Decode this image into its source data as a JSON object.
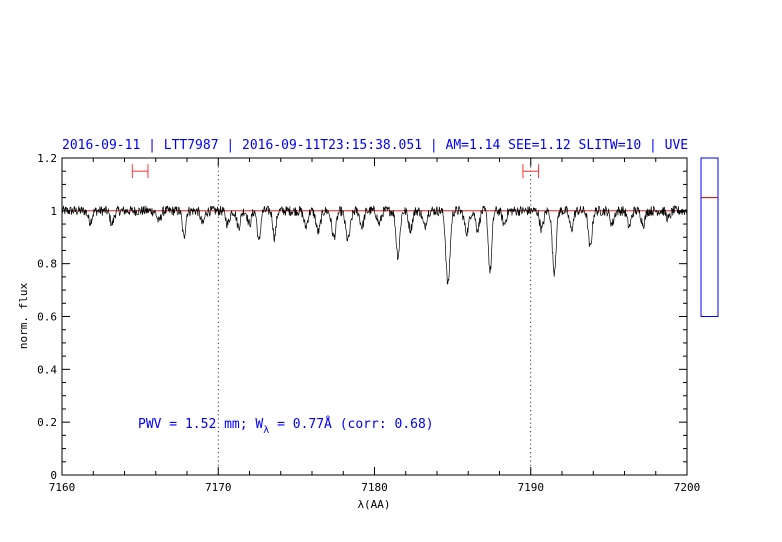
{
  "chart_data": {
    "type": "line",
    "title": "2016-09-11 | LTT7987 | 2016-09-11T23:15:38.051 | AM=1.14  SEE=1.12  SLITW=10 | UVE",
    "xlabel": "λ(AA)",
    "ylabel": "norm. flux",
    "xlim": [
      7160,
      7200
    ],
    "ylim": [
      0,
      1.2
    ],
    "xticks": [
      7160,
      7170,
      7180,
      7190,
      7200
    ],
    "yticks": [
      0,
      0.2,
      0.4,
      0.6,
      0.8,
      1,
      1.2
    ],
    "ytick_labels": [
      "0",
      "0.2",
      "0.4",
      "0.6",
      "0.8",
      "1",
      "1.2"
    ],
    "grid": false,
    "vertical_dotted_lines_x": [
      7170,
      7190
    ],
    "reference_line_y": 1.0,
    "annotation": {
      "prefix": "PWV = 1.52 mm; W",
      "subscript": "λ",
      "suffix": " = 0.77Å (corr: 0.68)"
    },
    "error_bar_markers": [
      {
        "x_center": 7165.0,
        "half_width": 0.5,
        "y": 1.15
      },
      {
        "x_center": 7190.0,
        "half_width": 0.5,
        "y": 1.15
      }
    ],
    "side_indicator": {
      "range": [
        0.6,
        1.2
      ],
      "level": 1.05
    },
    "absorption_lines": [
      {
        "x": 7161.8,
        "depth": 0.04,
        "width": 0.12
      },
      {
        "x": 7163.2,
        "depth": 0.05,
        "width": 0.12
      },
      {
        "x": 7166.2,
        "depth": 0.04,
        "width": 0.12
      },
      {
        "x": 7167.8,
        "depth": 0.1,
        "width": 0.1
      },
      {
        "x": 7169.0,
        "depth": 0.05,
        "width": 0.12
      },
      {
        "x": 7170.6,
        "depth": 0.05,
        "width": 0.12
      },
      {
        "x": 7171.3,
        "depth": 0.06,
        "width": 0.12
      },
      {
        "x": 7172.0,
        "depth": 0.05,
        "width": 0.12
      },
      {
        "x": 7172.6,
        "depth": 0.12,
        "width": 0.1
      },
      {
        "x": 7173.6,
        "depth": 0.1,
        "width": 0.1
      },
      {
        "x": 7175.6,
        "depth": 0.06,
        "width": 0.12
      },
      {
        "x": 7176.4,
        "depth": 0.08,
        "width": 0.14
      },
      {
        "x": 7177.4,
        "depth": 0.1,
        "width": 0.14
      },
      {
        "x": 7178.3,
        "depth": 0.11,
        "width": 0.15
      },
      {
        "x": 7179.2,
        "depth": 0.06,
        "width": 0.12
      },
      {
        "x": 7180.3,
        "depth": 0.05,
        "width": 0.12
      },
      {
        "x": 7181.5,
        "depth": 0.17,
        "width": 0.12
      },
      {
        "x": 7182.3,
        "depth": 0.07,
        "width": 0.12
      },
      {
        "x": 7183.2,
        "depth": 0.06,
        "width": 0.12
      },
      {
        "x": 7184.7,
        "depth": 0.28,
        "width": 0.13
      },
      {
        "x": 7185.9,
        "depth": 0.08,
        "width": 0.14
      },
      {
        "x": 7186.6,
        "depth": 0.07,
        "width": 0.12
      },
      {
        "x": 7187.4,
        "depth": 0.23,
        "width": 0.11
      },
      {
        "x": 7188.3,
        "depth": 0.05,
        "width": 0.12
      },
      {
        "x": 7190.7,
        "depth": 0.07,
        "width": 0.12
      },
      {
        "x": 7191.5,
        "depth": 0.23,
        "width": 0.12
      },
      {
        "x": 7192.6,
        "depth": 0.07,
        "width": 0.12
      },
      {
        "x": 7193.8,
        "depth": 0.14,
        "width": 0.12
      },
      {
        "x": 7195.2,
        "depth": 0.05,
        "width": 0.12
      },
      {
        "x": 7196.3,
        "depth": 0.06,
        "width": 0.12
      },
      {
        "x": 7197.2,
        "depth": 0.05,
        "width": 0.12
      },
      {
        "x": 7198.8,
        "depth": 0.03,
        "width": 0.12
      }
    ],
    "series": [
      {
        "continuum": 1.0,
        "noise": 0.012,
        "x_start": 7160,
        "x_end": 7200,
        "step": 0.03
      }
    ],
    "colors": {
      "title": "#0000ff",
      "spectrum": "#000000",
      "reference_line": "#cc0000",
      "error_markers": "#ff3333",
      "side_indicator_frame": "#0000ff",
      "side_indicator_level": "#cc0000"
    }
  }
}
